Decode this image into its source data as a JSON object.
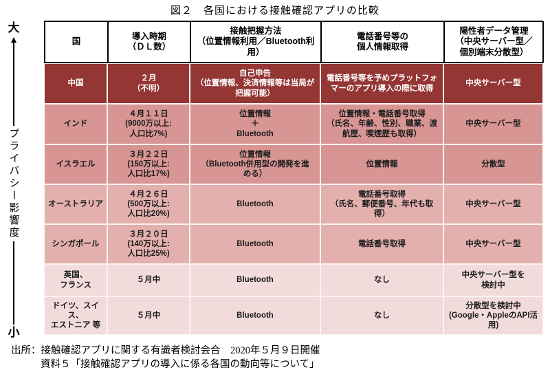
{
  "title": "図２　各国における接触確認アプリの比較",
  "axis": {
    "top_label": "大",
    "label": "プライバシー影響度",
    "bottom_label": "小"
  },
  "table": {
    "headers": {
      "country": "国",
      "launch": "導入時期\n（ＤＬ数）",
      "method": "接触把握方法\n（位置情報利用／Bluetooth利用）",
      "personal_info": "電話番号等の\n個人情報取得",
      "data_management": "陽性者データ管理\n（中央サーバー型／\n個別端末分散型）"
    },
    "rows": [
      {
        "country": "中国",
        "launch": "２月\n（不明）",
        "method": "自己申告\n（位置情報、決済情報等は当局が\n把握可能）",
        "personal_info": "電話番号等を予めプラットフォ\nマーのアプリ導入の際に取得",
        "data_management": "中央サーバー型"
      },
      {
        "country": "インド",
        "launch": "４月１１日\n(9000万以上:\n人口比7%)",
        "method": "位置情報\n＋\nBluetooth",
        "personal_info": "位置情報・電話番号取得\n（氏名、年齢、性別、職業、渡\n航歴、喫煙歴も取得）",
        "data_management": "中央サーバー型"
      },
      {
        "country": "イスラエル",
        "launch": "３月２２日\n(150万以上:\n人口比17%)",
        "method": "位置情報\n（Bluetooth併用型の開発を進\nめる）",
        "personal_info": "位置情報",
        "data_management": "分散型"
      },
      {
        "country": "オーストラリア",
        "launch": "４月２６日\n(500万以上:\n人口比20%)",
        "method": "Bluetooth",
        "personal_info": "電話番号取得\n（氏名、郵便番号、年代も取\n得）",
        "data_management": "中央サーバー型"
      },
      {
        "country": "シンガポール",
        "launch": "３月２０日\n(140万以上:\n人口比25%)",
        "method": "Bluetooth",
        "personal_info": "電話番号取得",
        "data_management": "中央サーバー型"
      },
      {
        "country": "英国、\nフランス",
        "launch": "５月中",
        "method": "Bluetooth",
        "personal_info": "なし",
        "data_management": "中央サーバー型を\n検討中"
      },
      {
        "country": "ドイツ、スイス、\nエストニア 等",
        "launch": "５月中",
        "method": "Bluetooth",
        "personal_info": "なし",
        "data_management": "分散型を検討中\n(Google・AppleのAPI活\n用)"
      }
    ]
  },
  "source": {
    "line1": "出所：接触確認アプリに関する有識者検討会合　2020年５月９日開催",
    "line2": "資料５「接触確認アプリの導入に係る各国の動向等について」"
  },
  "colors": {
    "row_dark": "#943634",
    "row_medium": "#d79593",
    "row_light": "#e3b0ae",
    "row_pale": "#f2dcdb",
    "header_bg": "#ffffff",
    "dark_row_text": "#ffffff",
    "body_text": "#1c1c1c"
  }
}
